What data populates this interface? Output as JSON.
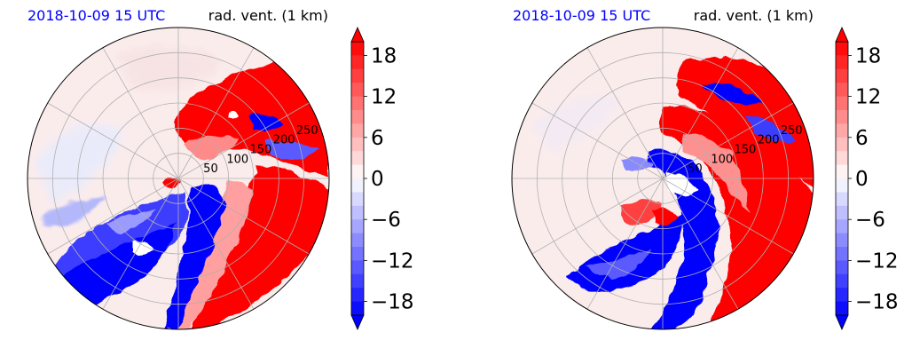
{
  "colors": {
    "positive": "#ff0000",
    "negative": "#0000ff",
    "neutral": "#ffffff",
    "grid": "#b0b0b0",
    "date_text": "#0000ff"
  },
  "chart_data": [
    {
      "type": "heatmap",
      "projection": "polar",
      "title_left": "2018-10-09 15 UTC",
      "title_right": "rad. vent. (1 km)",
      "radial_ticks": [
        "50",
        "100",
        "150",
        "200",
        "250"
      ],
      "radial_values": [
        50,
        100,
        150,
        200,
        250
      ],
      "radial_max": 300,
      "grid": true,
      "colorbar": {
        "min": -20,
        "max": 20,
        "step": 2,
        "extend": "both",
        "ticks": [
          18,
          12,
          6,
          0,
          -6,
          -12,
          -18
        ],
        "tick_labels": [
          "18",
          "12",
          "6",
          "0",
          "−6",
          "−12",
          "−18"
        ],
        "colormap": "bwr"
      }
    },
    {
      "type": "heatmap",
      "projection": "polar",
      "title_left": "2018-10-09 15 UTC",
      "title_right": "rad. vent. (1 km)",
      "radial_ticks": [
        "50",
        "100",
        "150",
        "200",
        "250"
      ],
      "radial_values": [
        50,
        100,
        150,
        200,
        250
      ],
      "radial_max": 300,
      "grid": true,
      "colorbar": {
        "min": -20,
        "max": 20,
        "step": 2,
        "extend": "both",
        "ticks": [
          18,
          12,
          6,
          0,
          -6,
          -12,
          -18
        ],
        "tick_labels": [
          "18",
          "12",
          "6",
          "0",
          "−6",
          "−12",
          "−18"
        ],
        "colormap": "bwr"
      }
    }
  ]
}
